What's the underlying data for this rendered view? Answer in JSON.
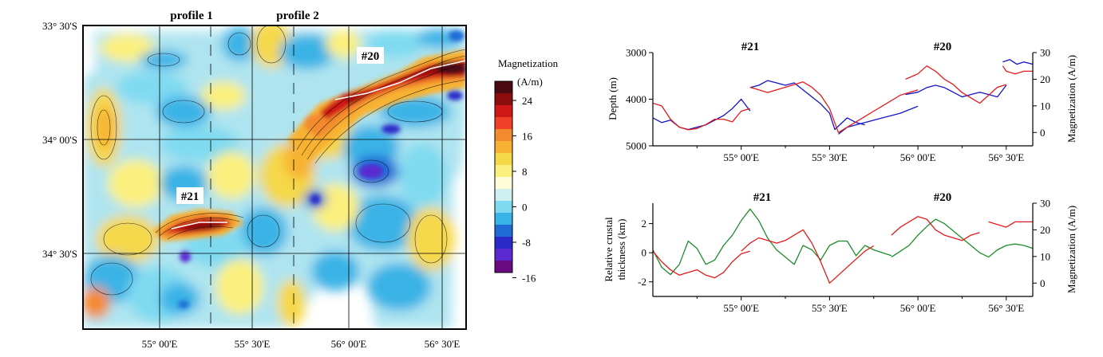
{
  "map": {
    "title_labels": [
      "profile 1",
      "profile 2"
    ],
    "lat_ticks": [
      "33° 30'S",
      "34° 00'S",
      "34° 30'S"
    ],
    "lon_ticks": [
      "55° 00'E",
      "55° 30'E",
      "56° 00'E",
      "56° 30'E"
    ],
    "anomaly_labels": [
      "#20",
      "#21"
    ]
  },
  "colorbar": {
    "title": "Magnetization",
    "unit": "(A/m)",
    "ticks": [
      "24",
      "16",
      "8",
      "0",
      "-8",
      "-16"
    ],
    "colors": [
      "#4a0a12",
      "#8b0d0d",
      "#d01818",
      "#f04028",
      "#f38a2e",
      "#f7b233",
      "#f5d84a",
      "#fbf07e",
      "#fffcd9",
      "#cfeff0",
      "#7fdaf0",
      "#3ab3e6",
      "#1f6bd6",
      "#2a2ac8",
      "#5a2ad0",
      "#6a0a80"
    ]
  },
  "chart_data": [
    {
      "type": "line",
      "title": "",
      "panel_labels": [
        "#21",
        "#20"
      ],
      "x_ticks": [
        "55° 00'E",
        "55° 30'E",
        "56° 00'E",
        "56° 30'E"
      ],
      "x_tick_values": [
        55.0,
        55.5,
        56.0,
        56.5
      ],
      "xlim": [
        54.5,
        56.65
      ],
      "ylabel_left": "Depth (m)",
      "ylim_left": [
        5000,
        3000
      ],
      "yticks_left": [
        "3000",
        "4000",
        "5000"
      ],
      "ylabel_right": "Magnetization (A/m)",
      "ylim_right": [
        -5,
        30
      ],
      "yticks_right": [
        "30",
        "20",
        "10",
        "0"
      ],
      "series": [
        {
          "name": "Depth",
          "axis": "left",
          "color": "#1414c8",
          "segments": [
            {
              "x": [
                54.5,
                54.55,
                54.6,
                54.65,
                54.7,
                54.75,
                54.8,
                54.85,
                54.9,
                54.95,
                55.0,
                55.05
              ],
              "y": [
                4400,
                4500,
                4450,
                4600,
                4650,
                4600,
                4550,
                4450,
                4350,
                4200,
                4000,
                4250
              ]
            },
            {
              "x": [
                55.05,
                55.1,
                55.15,
                55.2,
                55.25,
                55.3,
                55.35,
                55.4,
                55.45,
                55.5,
                55.53,
                55.6,
                55.65,
                55.7
              ],
              "y": [
                3750,
                3700,
                3600,
                3650,
                3700,
                3650,
                3800,
                3950,
                4100,
                4300,
                4650,
                4400,
                4500,
                4550
              ]
            },
            {
              "x": [
                55.55,
                55.6,
                55.7,
                55.8,
                55.9,
                56.0
              ],
              "y": [
                4750,
                4600,
                4500,
                4400,
                4300,
                4150
              ]
            },
            {
              "x": [
                55.93,
                56.0,
                56.05,
                56.1,
                56.15,
                56.2,
                56.25,
                56.3,
                56.35,
                56.4,
                56.45,
                56.5
              ],
              "y": [
                3900,
                3850,
                3750,
                3700,
                3750,
                3850,
                3950,
                3900,
                3850,
                3900,
                3950,
                3700
              ]
            },
            {
              "x": [
                56.48,
                56.52,
                56.56,
                56.6,
                56.65
              ],
              "y": [
                3200,
                3150,
                3250,
                3200,
                3250
              ]
            }
          ]
        },
        {
          "name": "Magnetization",
          "axis": "right",
          "color": "#e11b1b",
          "segments": [
            {
              "x": [
                54.5,
                54.55,
                54.6,
                54.65,
                54.7,
                54.75,
                54.8,
                54.85,
                54.9,
                54.95,
                55.0,
                55.05
              ],
              "y": [
                11,
                10,
                5,
                2,
                1,
                1.5,
                3,
                5,
                5,
                4,
                8,
                9
              ]
            },
            {
              "x": [
                55.05,
                55.1,
                55.15,
                55.2,
                55.25,
                55.3,
                55.35,
                55.4,
                55.45,
                55.5,
                55.55,
                55.6,
                55.65,
                55.7,
                55.75,
                55.8,
                55.85,
                55.9,
                55.95,
                56.0
              ],
              "y": [
                17,
                16,
                15,
                16,
                17,
                18,
                19,
                17,
                14,
                9,
                0,
                2,
                4,
                6,
                8,
                10,
                12,
                14,
                15,
                16
              ]
            },
            {
              "x": [
                55.93,
                56.0,
                56.05,
                56.1,
                56.15,
                56.2,
                56.25,
                56.3,
                56.35,
                56.4,
                56.45,
                56.5
              ],
              "y": [
                20,
                22,
                25,
                23,
                20,
                18,
                15,
                13,
                11,
                14,
                17,
                18
              ]
            },
            {
              "x": [
                56.48,
                56.5,
                56.55,
                56.6,
                56.65
              ],
              "y": [
                25,
                23,
                22,
                23,
                23
              ]
            }
          ]
        }
      ]
    },
    {
      "type": "line",
      "title": "",
      "panel_labels": [
        "#21",
        "#20"
      ],
      "x_ticks": [
        "55° 00'E",
        "55° 30'E",
        "56° 00'E",
        "56° 30'E"
      ],
      "x_tick_values": [
        55.0,
        55.5,
        56.0,
        56.5
      ],
      "xlim": [
        54.5,
        56.65
      ],
      "ylabel_left": "Relative crustal thickness (km)",
      "ylim_left": [
        -3,
        3.4
      ],
      "yticks_left": [
        "2",
        "0",
        "-2"
      ],
      "ylabel_right": "Magnetization (A/m)",
      "ylim_right": [
        -5,
        30
      ],
      "yticks_right": [
        "30",
        "20",
        "10",
        "0"
      ],
      "series": [
        {
          "name": "Crustal thickness",
          "axis": "left",
          "color": "#1e8c2a",
          "segments": [
            {
              "x": [
                54.5,
                54.55,
                54.6,
                54.65,
                54.7,
                54.75,
                54.8,
                54.85,
                54.9,
                54.95,
                55.0,
                55.05,
                55.1,
                55.15,
                55.2,
                55.25,
                55.3,
                55.35,
                55.4,
                55.45,
                55.5,
                55.55,
                55.6,
                55.65,
                55.7,
                55.75,
                55.8,
                55.85
              ],
              "y": [
                0.2,
                -1.0,
                -1.5,
                -0.8,
                0.8,
                0.3,
                -0.8,
                -0.5,
                0.5,
                1.2,
                2.2,
                3.0,
                2.2,
                1.0,
                0.2,
                -0.3,
                -0.8,
                0.5,
                0.2,
                -0.5,
                0.5,
                0.8,
                0.8,
                -0.2,
                0.5,
                0.2,
                0.0,
                -0.2
              ]
            },
            {
              "x": [
                55.85,
                55.9,
                55.95,
                56.0,
                56.05,
                56.1,
                56.15,
                56.2,
                56.25,
                56.3,
                56.35,
                56.4,
                56.45,
                56.5,
                56.55,
                56.6,
                56.65
              ],
              "y": [
                -0.3,
                0.1,
                0.5,
                1.2,
                1.8,
                2.3,
                2.0,
                1.5,
                1.0,
                0.5,
                0.0,
                -0.3,
                0.2,
                0.5,
                0.6,
                0.5,
                0.3
              ]
            }
          ]
        },
        {
          "name": "Magnetization",
          "axis": "right",
          "color": "#e11b1b",
          "segments": [
            {
              "x": [
                54.5,
                54.55,
                54.6,
                54.65,
                54.7,
                54.75,
                54.8,
                54.85,
                54.9,
                54.95,
                55.0,
                55.05
              ],
              "y": [
                12,
                8,
                5,
                3,
                4,
                5,
                3,
                2,
                4,
                8,
                11,
                12
              ]
            },
            {
              "x": [
                55.0,
                55.05,
                55.1,
                55.15,
                55.2,
                55.25,
                55.3,
                55.35,
                55.4,
                55.45,
                55.5,
                55.55,
                55.6,
                55.65,
                55.7,
                55.75
              ],
              "y": [
                12,
                15,
                17,
                16,
                15,
                16,
                18,
                20,
                15,
                8,
                0,
                3,
                6,
                9,
                12,
                14
              ]
            },
            {
              "x": [
                55.85,
                55.9,
                55.95,
                56.0,
                56.05,
                56.1,
                56.15,
                56.2,
                56.25,
                56.3,
                56.35
              ],
              "y": [
                18,
                21,
                23,
                25,
                24,
                20,
                18,
                17,
                16,
                18,
                19
              ]
            },
            {
              "x": [
                56.4,
                56.45,
                56.5,
                56.55,
                56.6,
                56.65
              ],
              "y": [
                23,
                22,
                21,
                23,
                23,
                23
              ]
            }
          ]
        }
      ]
    }
  ]
}
